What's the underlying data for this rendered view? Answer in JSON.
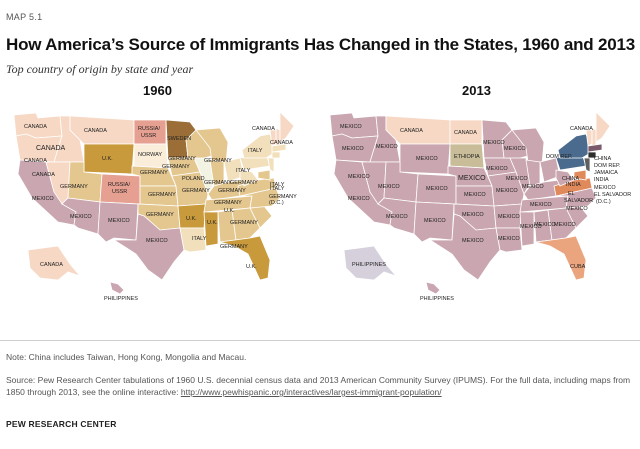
{
  "figure": {
    "map_number": "MAP 5.1",
    "title": "How America’s Source of Immigrants Has Changed in the States, 1960 and 2013",
    "subtitle": "Top country of origin by state and year"
  },
  "colors": {
    "mexico": "#c9a6b0",
    "canada": "#f6d8c4",
    "germany": "#e4c78f",
    "uk": "#c99a3c",
    "italy": "#f2dfbb",
    "russia_ussr": "#e6a091",
    "sweden": "#9a6e36",
    "norway": "#faeeda",
    "poland": "#f3f3e3",
    "philippines": "#d5d0dc",
    "china": "#4a6b8e",
    "india": "#5f5f5f",
    "ethiopia": "#c8bd98",
    "cuba": "#eba57e",
    "el_salvador": "#e08a5c",
    "dom_rep": "#7a5a6a",
    "jamaica": "#2e2e2e"
  },
  "maps": [
    {
      "year": "1960",
      "labels": {
        "canada_wa": "CANADA",
        "canada_mt": "CANADA",
        "canada_id": "CANADA",
        "canada_or": "CANADA",
        "russia_nd": "RUSSIA/",
        "ussr_nd": "USSR",
        "sweden_mn": "SWEDEN",
        "canada_me": "CANADA",
        "canada_vt": "CANADA",
        "norway_sd": "NORWAY",
        "uk_wy": "U.K.",
        "germany_wi": "GERMANY",
        "italy_ny": "ITALY",
        "germany_mi": "GERMANY",
        "italy_ri": "ITALY",
        "canada_nv": "CANADA",
        "germany_ut": "GERMANY",
        "russia_co": "RUSSIA/",
        "ussr_co": "USSR",
        "germany_ne": "GERMANY",
        "germany_ia": "GERMANY",
        "poland_il": "POLAND",
        "germany_in": "GERMANY",
        "italy_oh": "ITALY",
        "germany_pa": "GERMANY",
        "italy_de": "ITALY",
        "germany_dc": "GERMANY",
        "dc": "(D.C.)",
        "germany_ks": "GERMANY",
        "germany_mo": "GERMANY",
        "mexico_ca": "MEXICO",
        "mexico_az": "MEXICO",
        "mexico_nm": "MEXICO",
        "germany_ok": "GERMANY",
        "uk_ar": "U.K.",
        "germany_ky": "GERMANY",
        "germany_tn": "GERMANY",
        "uk_va": "U.K.",
        "uk_ms": "U.K.",
        "germany_al": "GERMANY",
        "italy_la": "ITALY",
        "mexico_tx": "MEXICO",
        "germany_ga": "GERMANY",
        "uk_fl": "U.K.",
        "canada_ak": "CANADA",
        "philippines_hi": "PHILIPPINES"
      }
    },
    {
      "year": "2013",
      "labels": {
        "mexico_wa": "MEXICO",
        "canada_mt": "CANADA",
        "canada_nd": "CANADA",
        "mexico_mn": "MEXICO",
        "canada_vt": "CANADA",
        "ethiopia_sd": "ETHIOPIA",
        "mexico_wy": "MEXICO",
        "mexico_id": "MEXICO",
        "mexico_or": "MEXICO",
        "mexico_wi": "MEXICO",
        "dom_rep_ri": "DOM REP.",
        "china_ny": "CHINA",
        "dom_rep_ma": "DOM REP.",
        "jamaica_ct": "JAMAICA",
        "india_nj": "INDIA",
        "mexico_de": "MEXICO",
        "el_salvador_md": "EL SALVADOR",
        "dc": "(D.C.)",
        "mexico_nv": "MEXICO",
        "mexico_ut": "MEXICO",
        "mexico_co": "MEXICO",
        "mexico_ne": "MEXICO",
        "mexico_ia": "MEXICO",
        "mexico_il": "MEXICO",
        "mexico_in": "MEXICO",
        "china_pa": "CHINA",
        "india_va": "INDIA",
        "el_salvador_va": "EL",
        "salvador_va": "SALVADOR",
        "mexico_ca": "MEXICO",
        "mexico_az": "MEXICO",
        "mexico_nm": "MEXICO",
        "mexico_ks": "MEXICO",
        "mexico_mo": "MEXICO",
        "mexico_ok": "MEXICO",
        "mexico_ar": "MEXICO",
        "mexico_tn": "MEXICO",
        "mexico_nc": "MEXICO",
        "mexico_tx": "MEXICO",
        "mexico_ms": "MEXICO",
        "mexico_al": "MEXICO",
        "mexico_ga": "MEXICO",
        "mexico_la": "MEXICO",
        "cuba_fl": "CUBA",
        "philippines_ak": "PHILIPPINES",
        "philippines_hi": "PHILIPPINES"
      }
    }
  ],
  "footer": {
    "note": "Note: China includes Taiwan, Hong Kong, Mongolia and Macau.",
    "source_text": "Source: Pew Research Center tabulations of 1960 U.S. decennial census data and 2013 American Community Survey (IPUMS). For the full data, including maps from 1850 through 2013, see the online interactive: ",
    "source_link": "http://www.pewhispanic.org/interactives/largest-immigrant-population/",
    "org": "PEW RESEARCH CENTER"
  }
}
